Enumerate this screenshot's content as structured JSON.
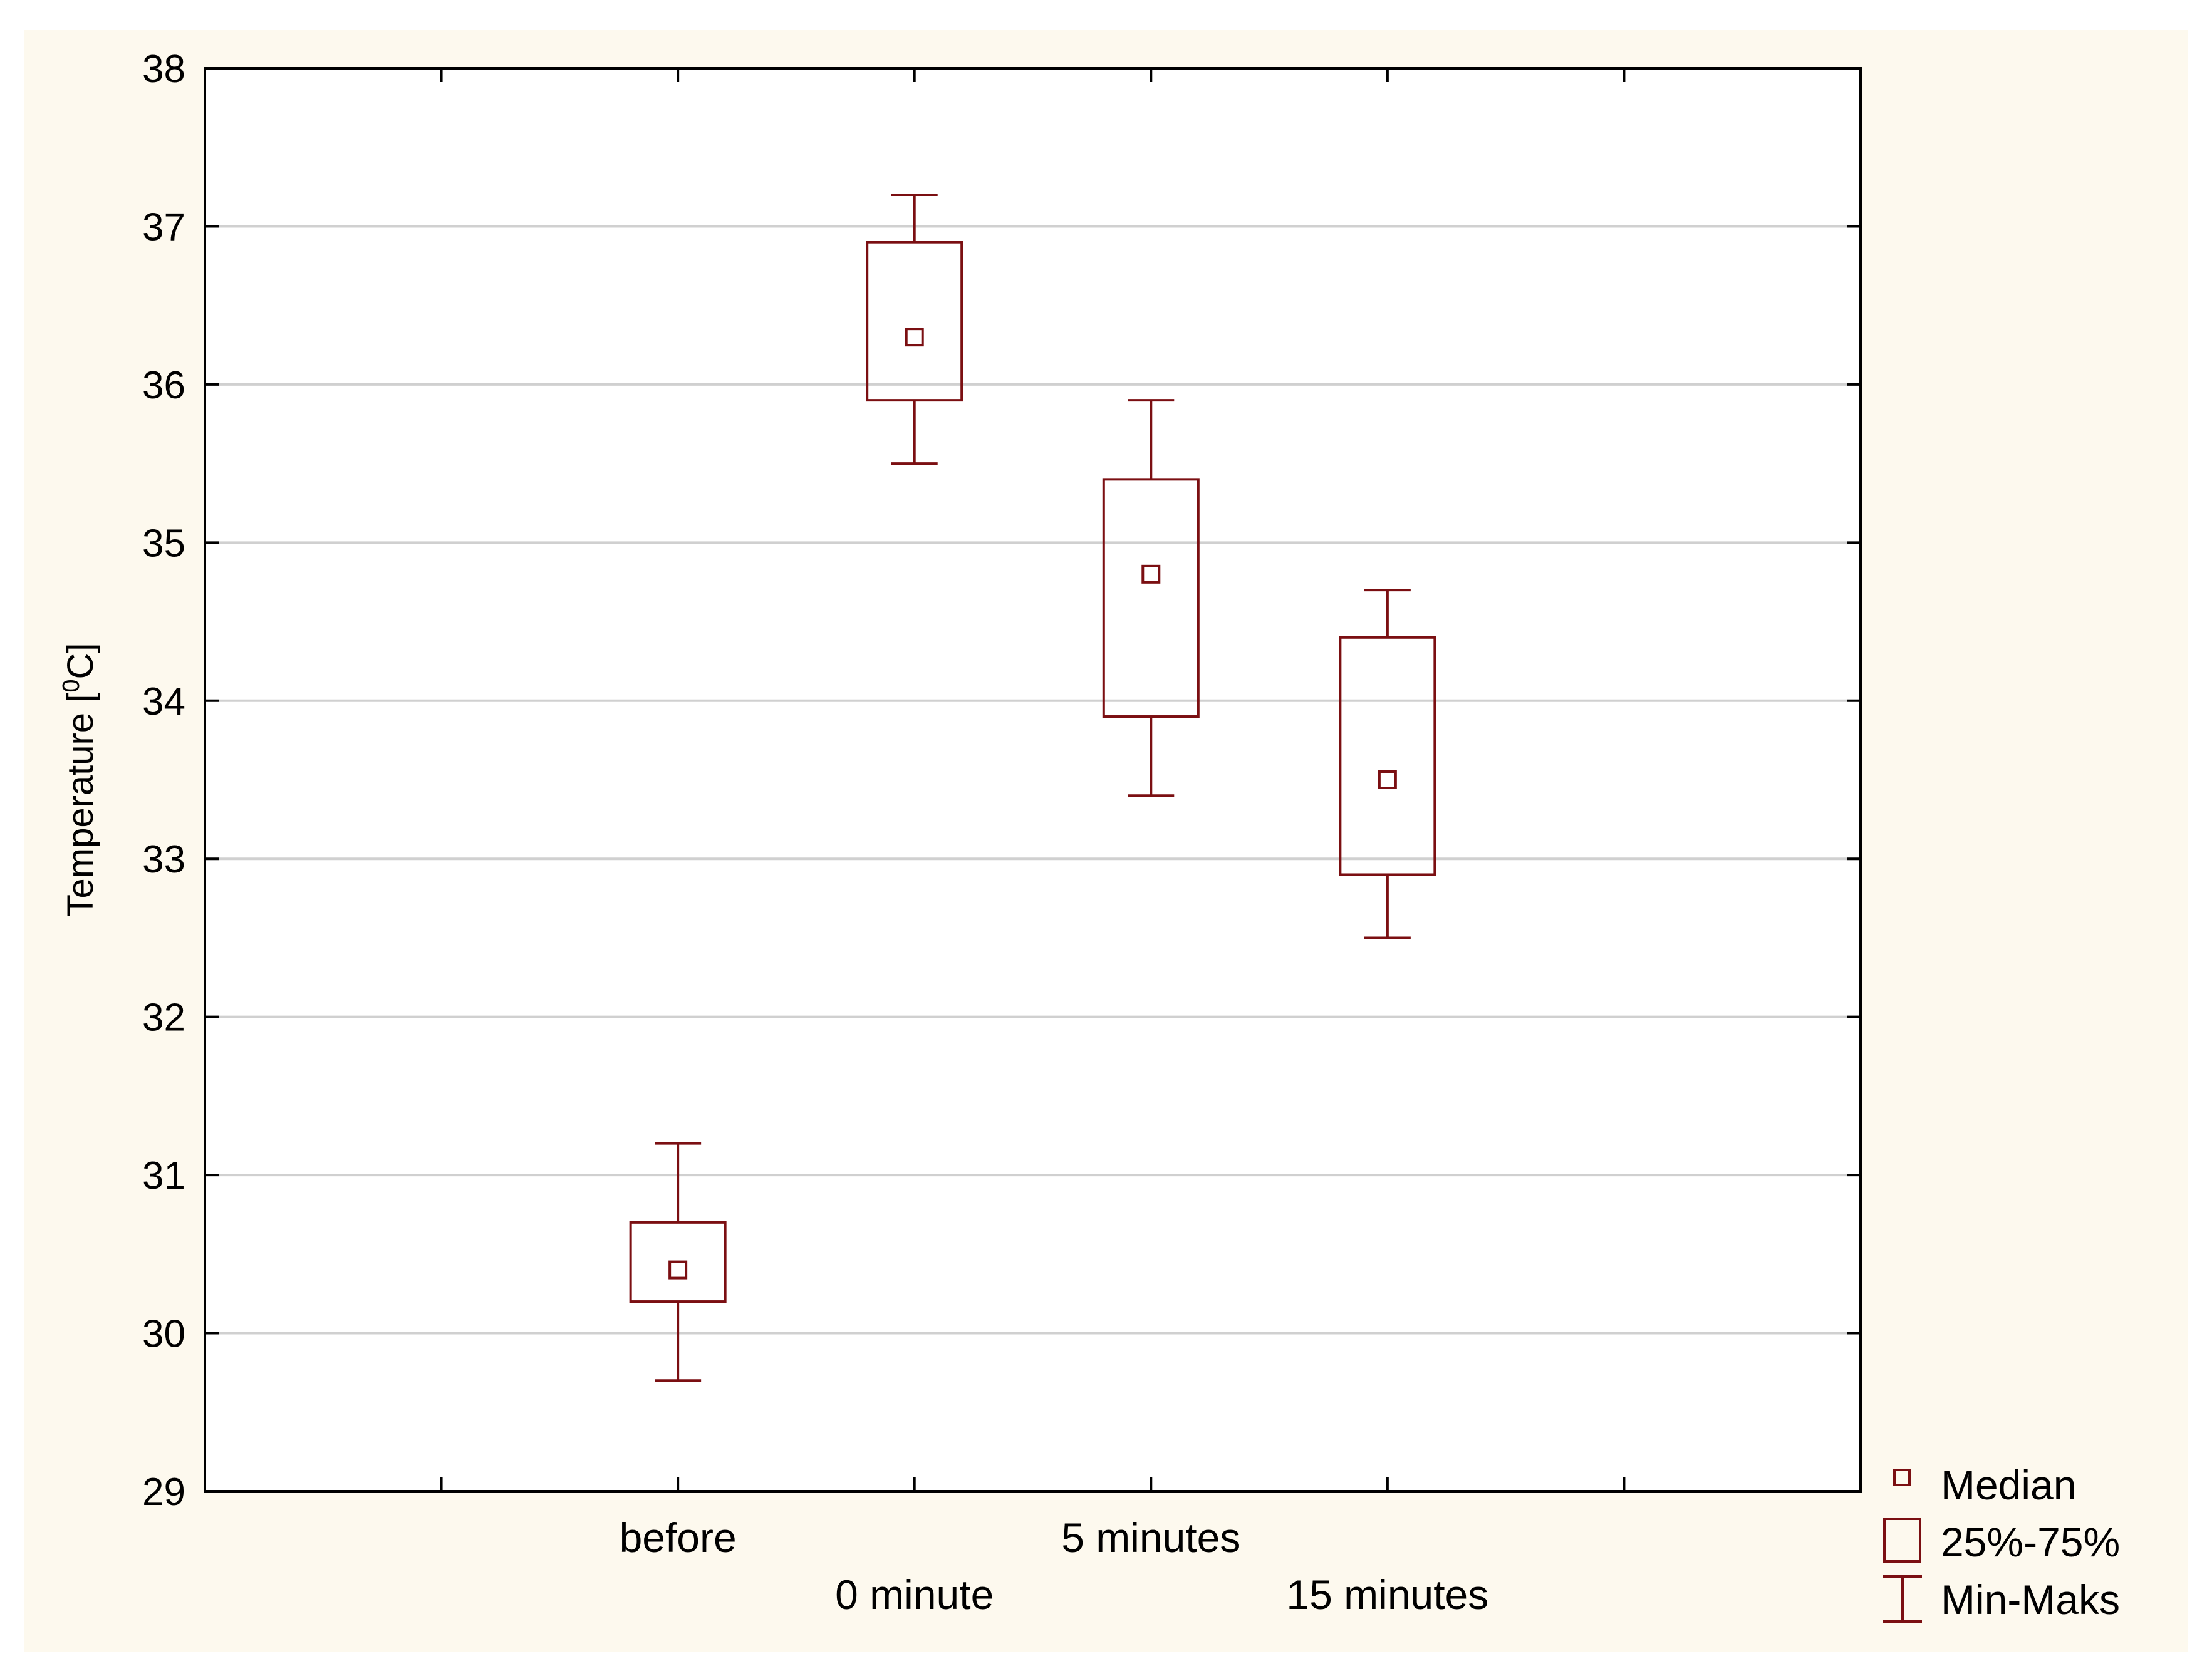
{
  "chart_data": {
    "type": "boxplot",
    "ylabel": "Temperature [",
    "ylabel_superscript": "0",
    "ylabel_suffix": "C]",
    "ylim": [
      29,
      38
    ],
    "yticks": [
      "29",
      "30",
      "31",
      "32",
      "33",
      "34",
      "35",
      "36",
      "37",
      "38"
    ],
    "grid": "horizontal",
    "legend_position": "bottom-right, outside plot",
    "categories": [
      "before",
      "0 minute",
      "5 minutes",
      "15 minutes"
    ],
    "series": [
      {
        "category": "before",
        "min": 29.7,
        "q1": 30.2,
        "median": 30.4,
        "q3": 30.7,
        "max": 31.2
      },
      {
        "category": "0 minute",
        "min": 35.5,
        "q1": 35.9,
        "median": 36.3,
        "q3": 36.9,
        "max": 37.2
      },
      {
        "category": "5 minutes",
        "min": 33.4,
        "q1": 33.9,
        "median": 34.8,
        "q3": 35.4,
        "max": 35.9
      },
      {
        "category": "15 minutes",
        "min": 32.5,
        "q1": 32.9,
        "median": 33.5,
        "q3": 34.4,
        "max": 34.7
      }
    ],
    "legend": [
      "Median",
      "25%-75%",
      "Min-Maks"
    ],
    "colors": {
      "box": "#7b0f12",
      "grid": "#d0d0d0",
      "outer_background": "#fdf9ee",
      "plot_background": "#ffffff"
    }
  }
}
